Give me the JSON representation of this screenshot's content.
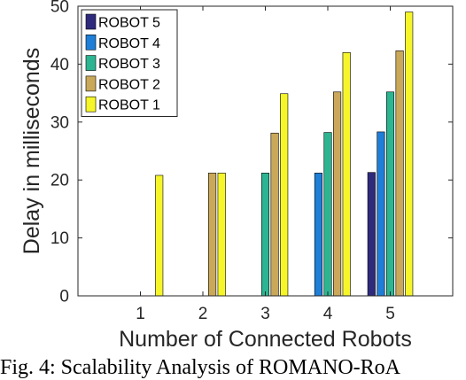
{
  "chart_data": {
    "type": "bar",
    "categories": [
      "1",
      "2",
      "3",
      "4",
      "5"
    ],
    "series": [
      {
        "name": "ROBOT 5",
        "color": "#2e2a7c",
        "values": [
          null,
          null,
          null,
          null,
          21.3
        ]
      },
      {
        "name": "ROBOT 4",
        "color": "#1f7ed6",
        "values": [
          null,
          null,
          null,
          21.2,
          28.3
        ]
      },
      {
        "name": "ROBOT 3",
        "color": "#2db592",
        "values": [
          null,
          null,
          21.2,
          28.2,
          35.2
        ]
      },
      {
        "name": "ROBOT 2",
        "color": "#c9a85a",
        "values": [
          null,
          21.2,
          28.1,
          35.2,
          42.3
        ]
      },
      {
        "name": "ROBOT 1",
        "color": "#f5f52a",
        "values": [
          20.8,
          21.2,
          34.9,
          42.0,
          49.0
        ]
      }
    ],
    "xlabel": "Number of Connected Robots",
    "ylabel": "Delay in milliseconds",
    "ylim": [
      0,
      50
    ],
    "xlim": [
      0,
      6
    ],
    "yticks": [
      0,
      10,
      20,
      30,
      40,
      50
    ],
    "legend_position": "top-left",
    "grid": false
  },
  "caption": "Fig. 4: Scalability Analysis of ROMANO-RoA"
}
